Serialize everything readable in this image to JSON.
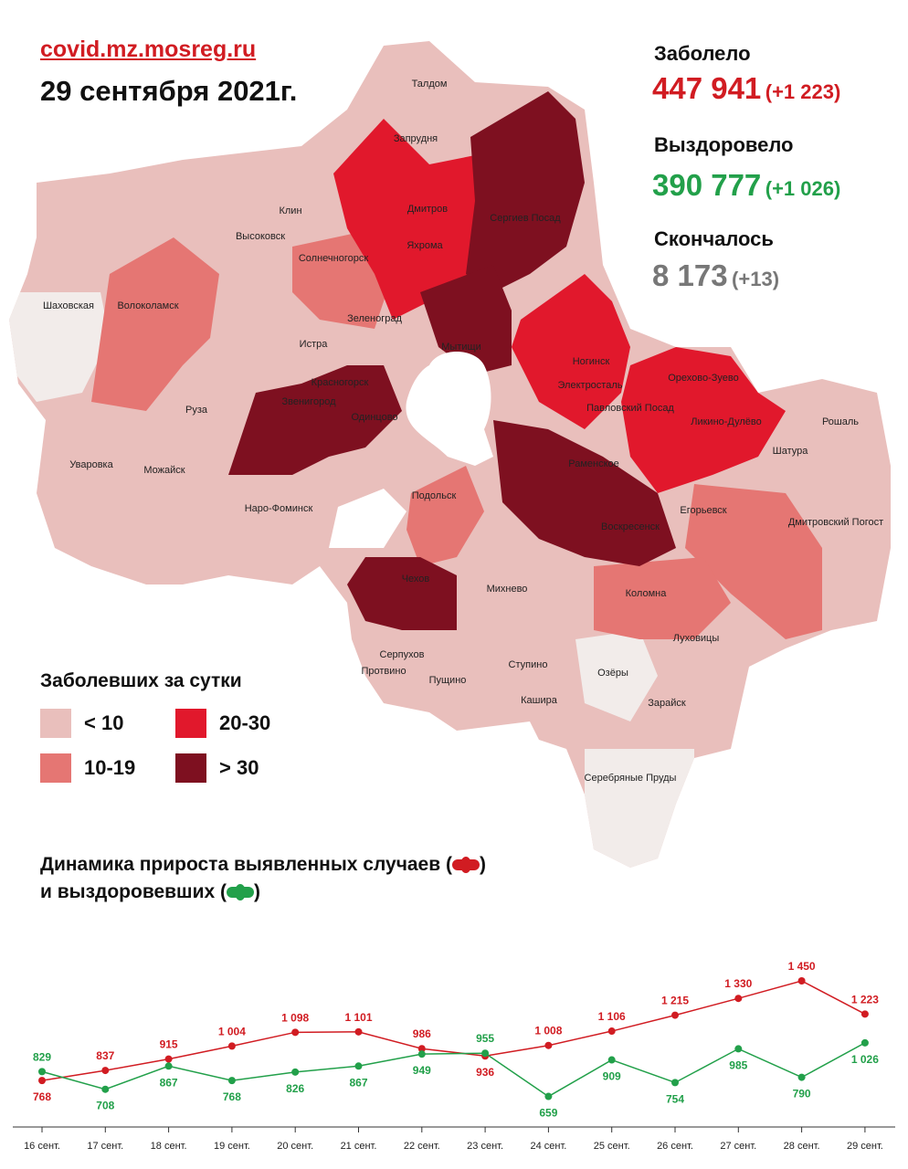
{
  "header": {
    "site": "covid.mz.mosreg.ru",
    "date": "29 сентября 2021г."
  },
  "stats": {
    "infected_label": "Заболело",
    "infected_total": "447 941",
    "infected_delta": "(+1 223)",
    "recovered_label": "Выздоровело",
    "recovered_total": "390 777",
    "recovered_delta": "(+1 026)",
    "deaths_label": "Скончалось",
    "deaths_total": "8 173",
    "deaths_delta": "(+13)"
  },
  "colors": {
    "infected": "#d11c22",
    "recovered": "#22a04a",
    "deaths": "#777777",
    "lt10": "#e9bfbc",
    "r10_19": "#e57673",
    "r20_30": "#e1182c",
    "gt30": "#7e1020"
  },
  "map_legend": {
    "title": "Заболевших за сутки",
    "items": [
      {
        "label": "< 10",
        "color": "#e9bfbc"
      },
      {
        "label": "20-30",
        "color": "#e1182c"
      },
      {
        "label": "10-19",
        "color": "#e57673"
      },
      {
        "label": "> 30",
        "color": "#7e1020"
      }
    ]
  },
  "map_towns": [
    "Талдом",
    "Запрудня",
    "Дмитров",
    "Яхрома",
    "Сергиев Посад",
    "Клин",
    "Высоковск",
    "Солнечногорск",
    "Волоколамск",
    "Шаховская",
    "Зеленоград",
    "Истра",
    "Мытищи",
    "Красногорск",
    "Звенигород",
    "Одинцово",
    "Руза",
    "Уваровка",
    "Можайск",
    "Наро-Фоминск",
    "Ногинск",
    "Электросталь",
    "Павловский Посад",
    "Орехово-Зуево",
    "Ликино-Дулёво",
    "Рошаль",
    "Шатура",
    "Раменское",
    "Воскресенск",
    "Егорьевск",
    "Дмитровский Погост",
    "Подольск",
    "Чехов",
    "Михнево",
    "Коломна",
    "Луховицы",
    "Серпухов",
    "Протвино",
    "Пущино",
    "Ступино",
    "Озёры",
    "Кашира",
    "Зарайск",
    "Серебряные Пруды"
  ],
  "dynamics": {
    "title_line1": "Динамика прироста выявленных случаев (",
    "title_line1_end": ")",
    "title_line2": "и выздоровевших (",
    "title_line2_end": ")"
  },
  "chart_data": {
    "type": "line",
    "categories": [
      "16 сент.",
      "17 сент.",
      "18 сент.",
      "19 сент.",
      "20 сент.",
      "21 сент.",
      "22 сент.",
      "23 сент.",
      "24 сент.",
      "25 сент.",
      "26 сент.",
      "27 сент.",
      "28 сент.",
      "29 сент."
    ],
    "series": [
      {
        "name": "выявленных случаев",
        "color": "#d11c22",
        "values": [
          768,
          837,
          915,
          1004,
          1098,
          1101,
          986,
          936,
          1008,
          1106,
          1215,
          1330,
          1450,
          1223
        ],
        "labels": [
          "768",
          "837",
          "915",
          "1 004",
          "1 098",
          "1 101",
          "986",
          "936",
          "1 008",
          "1 106",
          "1 215",
          "1 330",
          "1 450",
          "1 223"
        ],
        "label_pos": [
          "below",
          "above",
          "above",
          "above",
          "above",
          "above",
          "above",
          "below",
          "above",
          "above",
          "above",
          "above",
          "above",
          "above"
        ]
      },
      {
        "name": "выздоровевших",
        "color": "#22a04a",
        "values": [
          829,
          708,
          867,
          768,
          826,
          867,
          949,
          955,
          659,
          909,
          754,
          985,
          790,
          1026
        ],
        "labels": [
          "829",
          "708",
          "867",
          "768",
          "826",
          "867",
          "949",
          "955",
          "659",
          "909",
          "754",
          "985",
          "790",
          "1 026"
        ],
        "label_pos": [
          "above",
          "below",
          "below",
          "below",
          "below",
          "below",
          "below",
          "above",
          "below",
          "below",
          "below",
          "below",
          "below",
          "below"
        ]
      }
    ]
  }
}
